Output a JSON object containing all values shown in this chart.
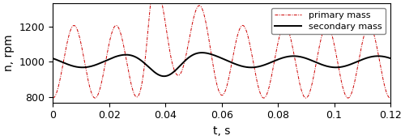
{
  "xlim": [
    0,
    0.12
  ],
  "ylim": [
    770,
    1330
  ],
  "yticks": [
    800,
    1000,
    1200
  ],
  "xticks": [
    0,
    0.02,
    0.04,
    0.06,
    0.08,
    0.1,
    0.12
  ],
  "xtick_labels": [
    "0",
    "0.02",
    "0.04",
    "0.06",
    "0.08",
    "0.1",
    "0.12"
  ],
  "xlabel": "t, s",
  "ylabel": "n, rpm",
  "legend": [
    "primary mass",
    "secondary mass"
  ],
  "primary_color": "#cc0000",
  "secondary_color": "#000000",
  "base_rpm": 1000.0,
  "primary_freq": 66.7,
  "secondary_freq": 33.3,
  "primary_amp": 205.0,
  "secondary_amp": 32.0,
  "secondary_amp_knock": 55.0,
  "figsize": [
    5.0,
    1.73
  ],
  "dpi": 100
}
